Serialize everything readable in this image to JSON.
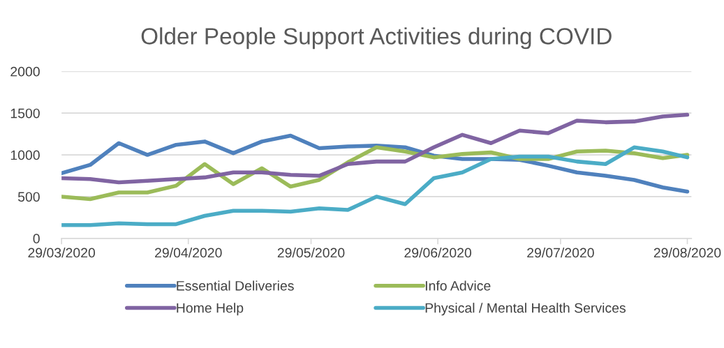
{
  "chart_data": {
    "type": "line",
    "title": "Older People Support Activities during COVID",
    "x": [
      "2020-03-29",
      "2020-04-05",
      "2020-04-12",
      "2020-04-19",
      "2020-04-26",
      "2020-05-03",
      "2020-05-10",
      "2020-05-17",
      "2020-05-24",
      "2020-05-31",
      "2020-06-07",
      "2020-06-14",
      "2020-06-21",
      "2020-06-28",
      "2020-07-05",
      "2020-07-12",
      "2020-07-19",
      "2020-07-26",
      "2020-08-02",
      "2020-08-09",
      "2020-08-16",
      "2020-08-23",
      "2020-08-29"
    ],
    "series": [
      {
        "name": "Essential Deliveries",
        "color": "#4f81bd",
        "values": [
          780,
          880,
          1140,
          1000,
          1120,
          1160,
          1020,
          1160,
          1230,
          1080,
          1100,
          1110,
          1090,
          990,
          950,
          950,
          940,
          870,
          790,
          750,
          700,
          610,
          560
        ]
      },
      {
        "name": "Info Advice",
        "color": "#9bbb59",
        "values": [
          500,
          470,
          550,
          550,
          630,
          890,
          650,
          840,
          620,
          700,
          910,
          1090,
          1040,
          970,
          1010,
          1030,
          950,
          950,
          1040,
          1050,
          1020,
          960,
          1000
        ]
      },
      {
        "name": "Home Help",
        "color": "#8064a2",
        "values": [
          720,
          710,
          670,
          690,
          710,
          730,
          790,
          790,
          760,
          750,
          890,
          920,
          920,
          1090,
          1240,
          1140,
          1290,
          1260,
          1410,
          1390,
          1400,
          1460,
          1480
        ]
      },
      {
        "name": "Physical / Mental Health Services",
        "color": "#4bacc6",
        "values": [
          160,
          160,
          180,
          170,
          170,
          270,
          330,
          330,
          320,
          360,
          340,
          500,
          410,
          720,
          790,
          950,
          980,
          980,
          920,
          890,
          1090,
          1040,
          970
        ]
      }
    ],
    "xlim": [
      "2020-03-29",
      "2020-08-30"
    ],
    "xticks": [
      {
        "value": "2020-03-29",
        "label": "29/03/2020"
      },
      {
        "value": "2020-04-29",
        "label": "29/04/2020"
      },
      {
        "value": "2020-05-29",
        "label": "29/05/2020"
      },
      {
        "value": "2020-06-29",
        "label": "29/06/2020"
      },
      {
        "value": "2020-07-29",
        "label": "29/07/2020"
      },
      {
        "value": "2020-08-29",
        "label": "29/08/2020"
      }
    ],
    "ylim": [
      0,
      2000
    ],
    "yticks": [
      0,
      500,
      1000,
      1500,
      2000
    ],
    "grid": "y",
    "legend": "bottom",
    "marker": "none",
    "line_style": "solid"
  }
}
